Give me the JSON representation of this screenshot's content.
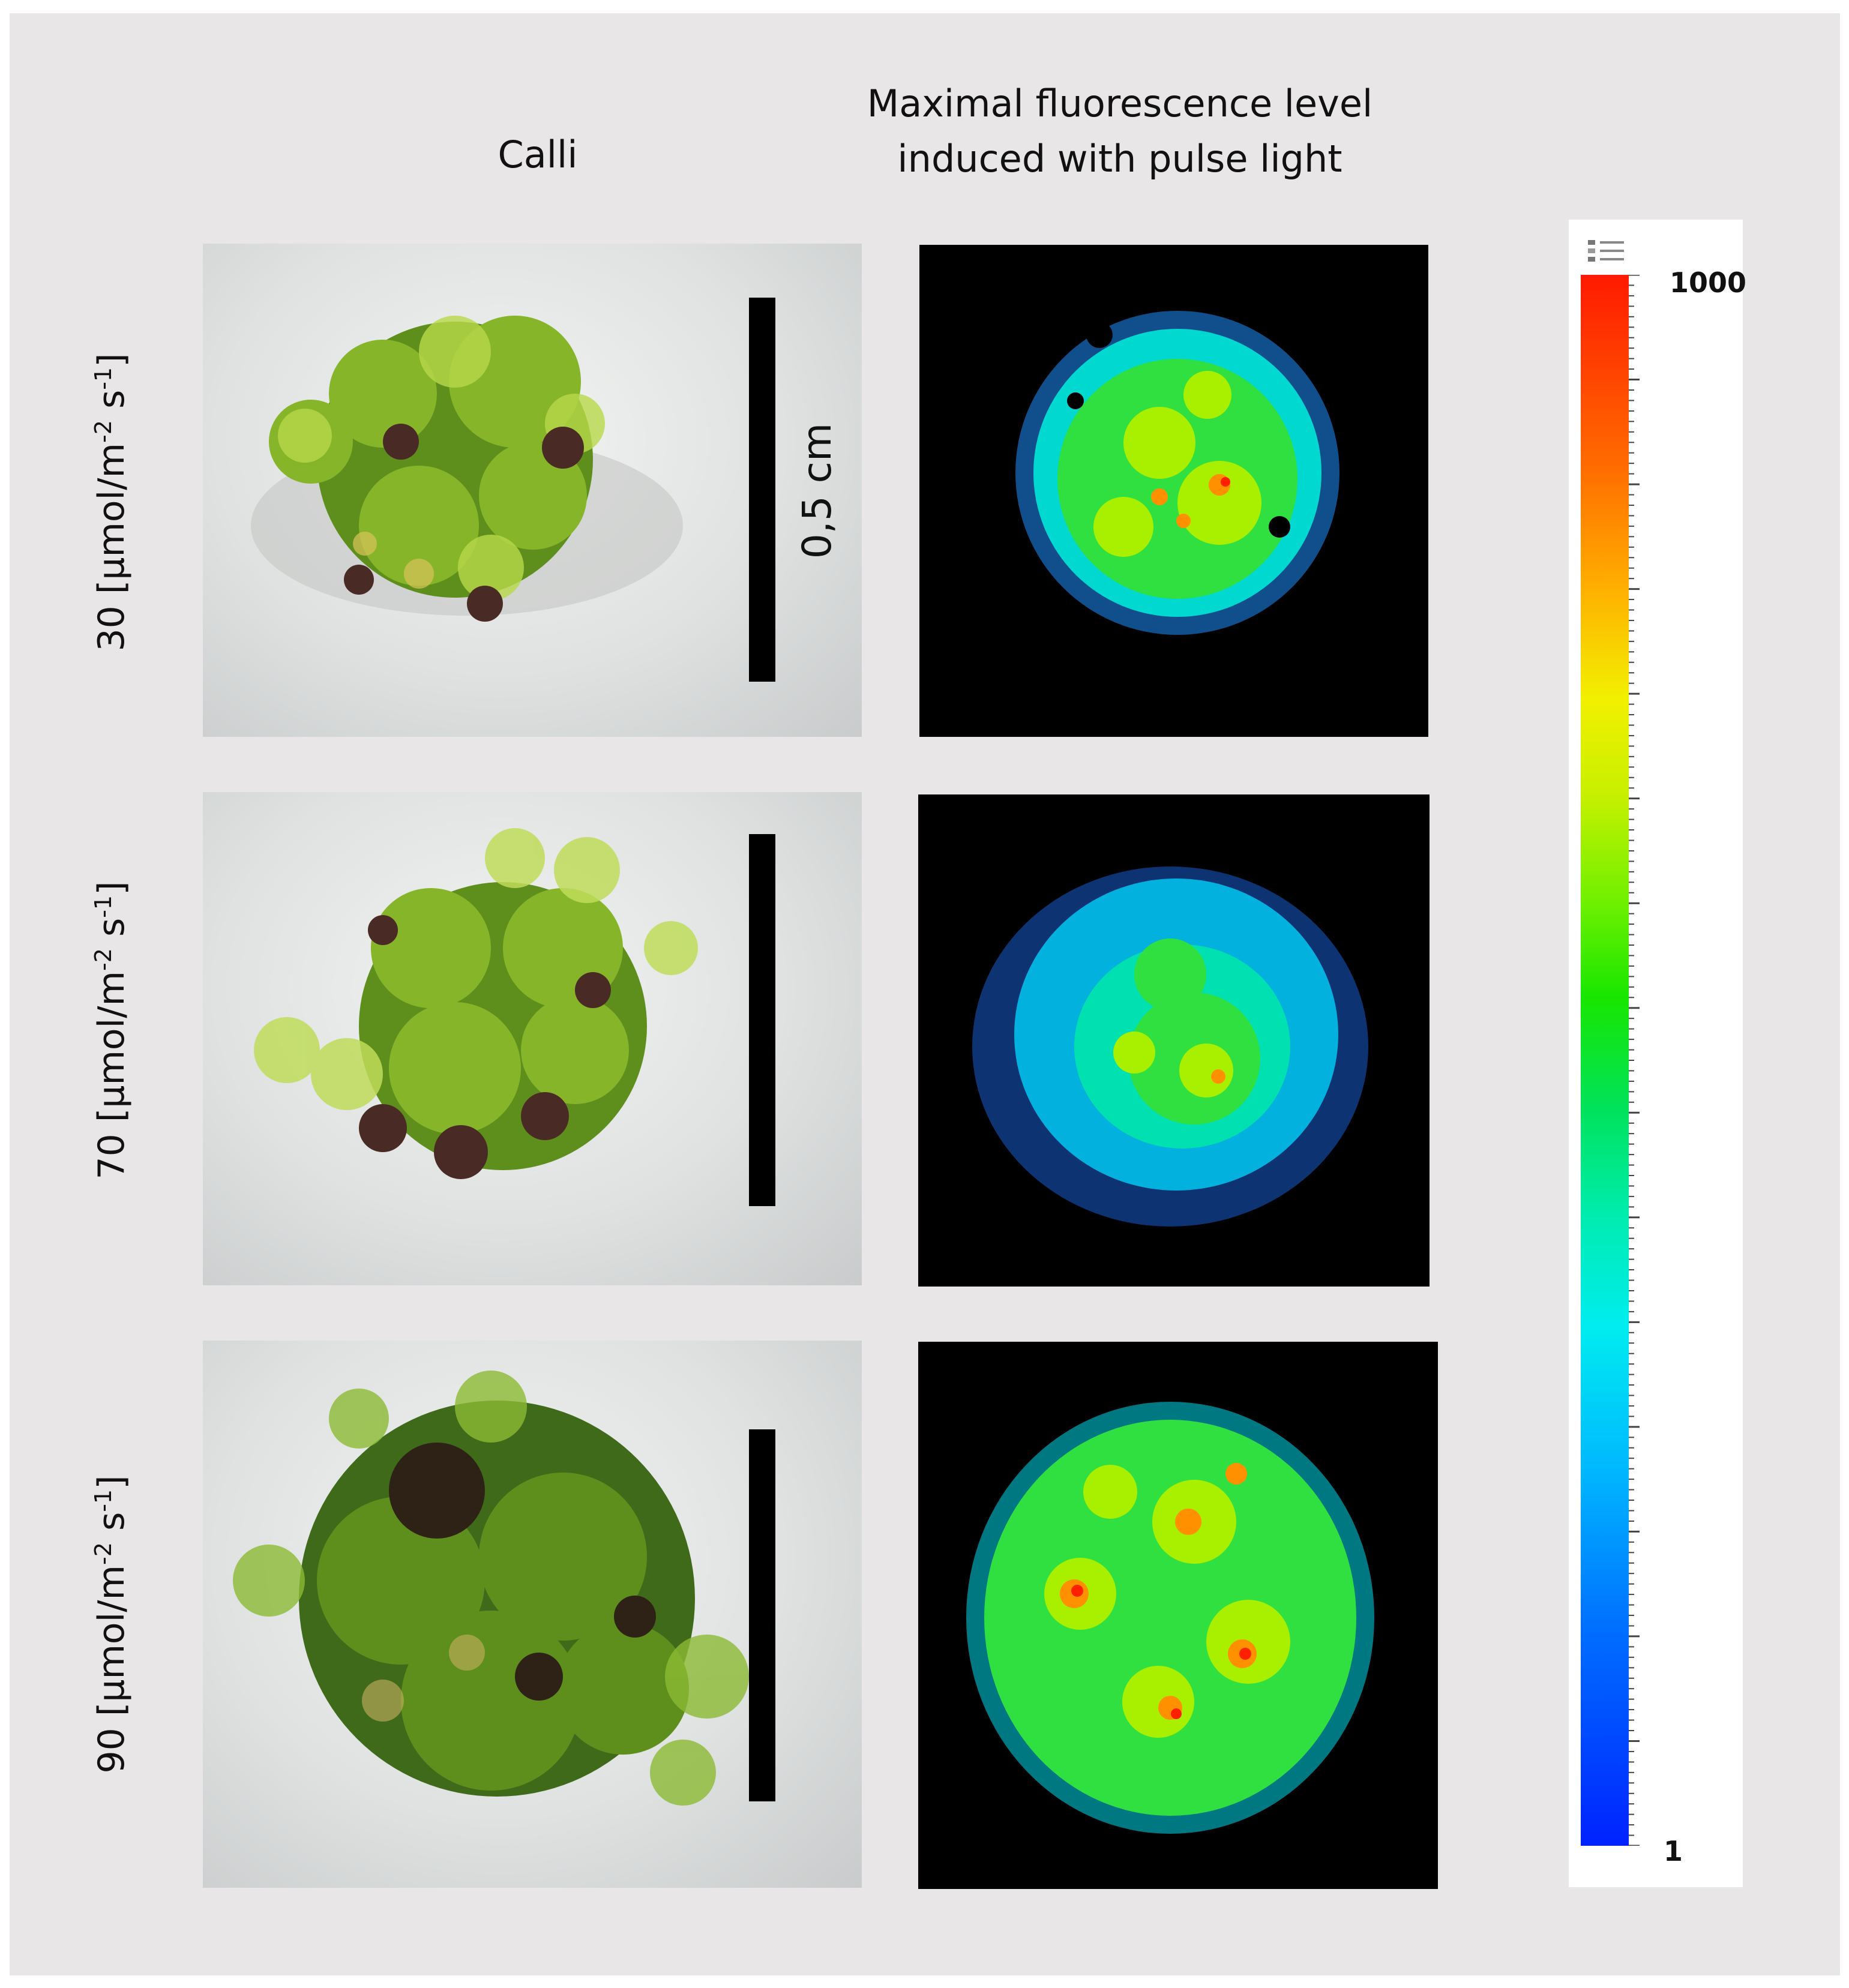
{
  "column_titles": {
    "calli": "Calli",
    "fluorescence": "Maximal fluorescence level\ninduced with pulse light"
  },
  "rows": [
    {
      "number": "30",
      "unit_main": " [µmol/m",
      "exp1": "-2",
      "mid": " s",
      "exp2": "-1",
      "close": "]"
    },
    {
      "number": "70",
      "unit_main": " [µmol/m",
      "exp1": "-2",
      "mid": " s",
      "exp2": "-1",
      "close": "]"
    },
    {
      "number": "90",
      "unit_main": " [µmol/m",
      "exp1": "-2",
      "mid": " s",
      "exp2": "-1",
      "close": "]"
    }
  ],
  "scale_bar_label": "0,5 cm",
  "colorbar": {
    "max_label": "1000",
    "min_label": "1",
    "colors": [
      "#ff1a00",
      "#ff9a00",
      "#f2f000",
      "#18e600",
      "#00ecf0",
      "#0022ff"
    ]
  },
  "fluorescence_intensity": [
    "green with yellow-orange spots",
    "cyan-blue with green center",
    "green with red-orange spots"
  ]
}
